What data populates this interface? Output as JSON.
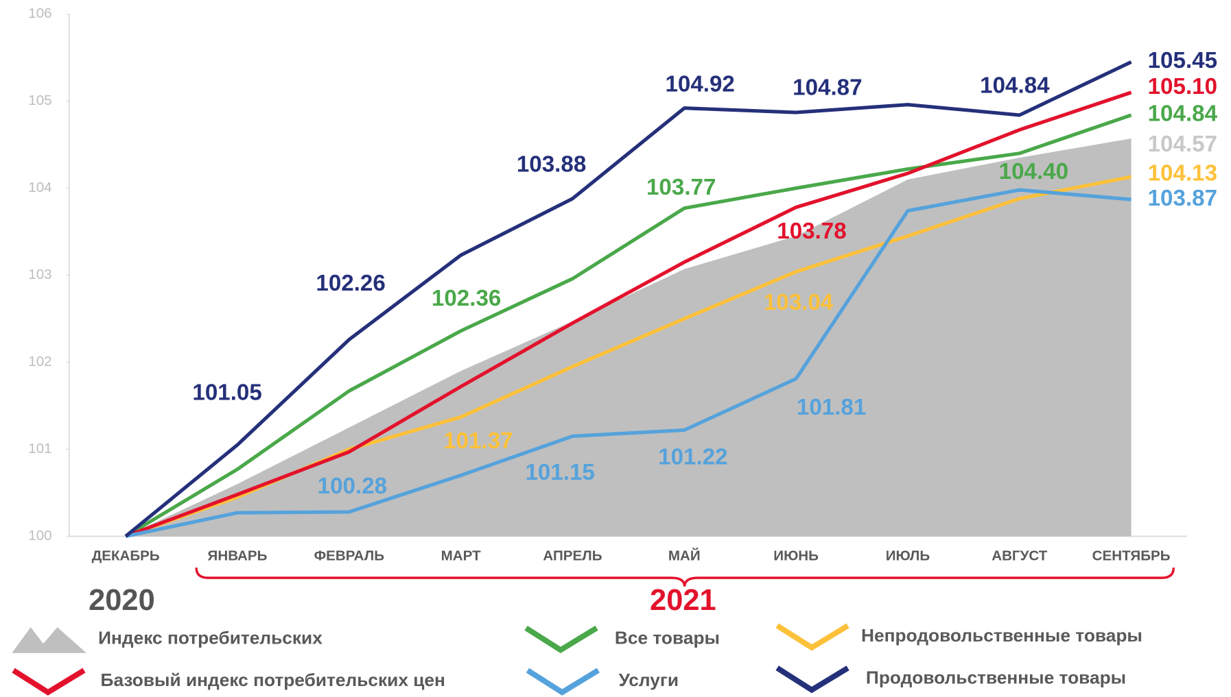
{
  "chart_data": {
    "type": "line",
    "categories": [
      "ДЕКАБРЬ",
      "ЯНВАРЬ",
      "ФЕВРАЛЬ",
      "МАРТ",
      "АПРЕЛЬ",
      "МАЙ",
      "ИЮНЬ",
      "ИЮЛЬ",
      "АВГУСТ",
      "СЕНТЯБРЬ"
    ],
    "year_labels": [
      "2020",
      "2021"
    ],
    "ylim": [
      100,
      106
    ],
    "yticks": [
      100,
      101,
      102,
      103,
      104,
      105,
      106
    ],
    "grid": false,
    "series": [
      {
        "name": "Индекс потребительских",
        "style": "area",
        "color": "#bfbfbf",
        "label_color": "#c8c8c8",
        "values": [
          100,
          100.6,
          101.25,
          101.9,
          102.47,
          103.07,
          103.45,
          104.1,
          104.35,
          104.57
        ],
        "value_labels": [
          null,
          null,
          null,
          null,
          null,
          null,
          null,
          null,
          null,
          "104.57"
        ]
      },
      {
        "name": "Все товары",
        "style": "line",
        "color": "#4aa84a",
        "label_color": "#4aa84a",
        "values": [
          100,
          100.77,
          101.67,
          102.36,
          102.96,
          103.77,
          104.0,
          104.22,
          104.4,
          104.84
        ],
        "value_labels": [
          null,
          null,
          null,
          "102.36",
          null,
          "103.77",
          null,
          null,
          "104.40",
          "104.84"
        ]
      },
      {
        "name": "Непродовольственные товары",
        "style": "line",
        "color": "#fdc13a",
        "label_color": "#fdc13a",
        "values": [
          100,
          100.45,
          101.0,
          101.37,
          101.95,
          102.5,
          103.04,
          103.45,
          103.88,
          104.13
        ],
        "value_labels": [
          null,
          null,
          null,
          "101.37",
          null,
          null,
          "103.04",
          null,
          null,
          "104.13"
        ]
      },
      {
        "name": "Базовый индекс потребительских цен",
        "style": "line",
        "color": "#e3122c",
        "label_color": "#e3122c",
        "values": [
          100,
          100.48,
          100.97,
          101.72,
          102.45,
          103.15,
          103.78,
          104.17,
          104.67,
          105.1
        ],
        "value_labels": [
          null,
          null,
          null,
          null,
          null,
          null,
          "103.78",
          null,
          null,
          "105.10"
        ]
      },
      {
        "name": "Услуги",
        "style": "line",
        "color": "#55a2dc",
        "label_color": "#55a2dc",
        "values": [
          100,
          100.27,
          100.28,
          100.7,
          101.15,
          101.22,
          101.81,
          103.74,
          103.98,
          103.87
        ],
        "value_labels": [
          null,
          null,
          "100.28",
          null,
          "101.15",
          "101.22",
          "101.81",
          null,
          null,
          "103.87"
        ]
      },
      {
        "name": "Продовольственные товары",
        "style": "line",
        "color": "#25307a",
        "label_color": "#25307a",
        "values": [
          100,
          101.05,
          102.26,
          103.23,
          103.88,
          104.92,
          104.87,
          104.96,
          104.84,
          105.45
        ],
        "value_labels": [
          null,
          "101.05",
          "102.26",
          null,
          "103.88",
          "104.92",
          "104.87",
          null,
          "104.84",
          "105.45"
        ]
      }
    ]
  }
}
